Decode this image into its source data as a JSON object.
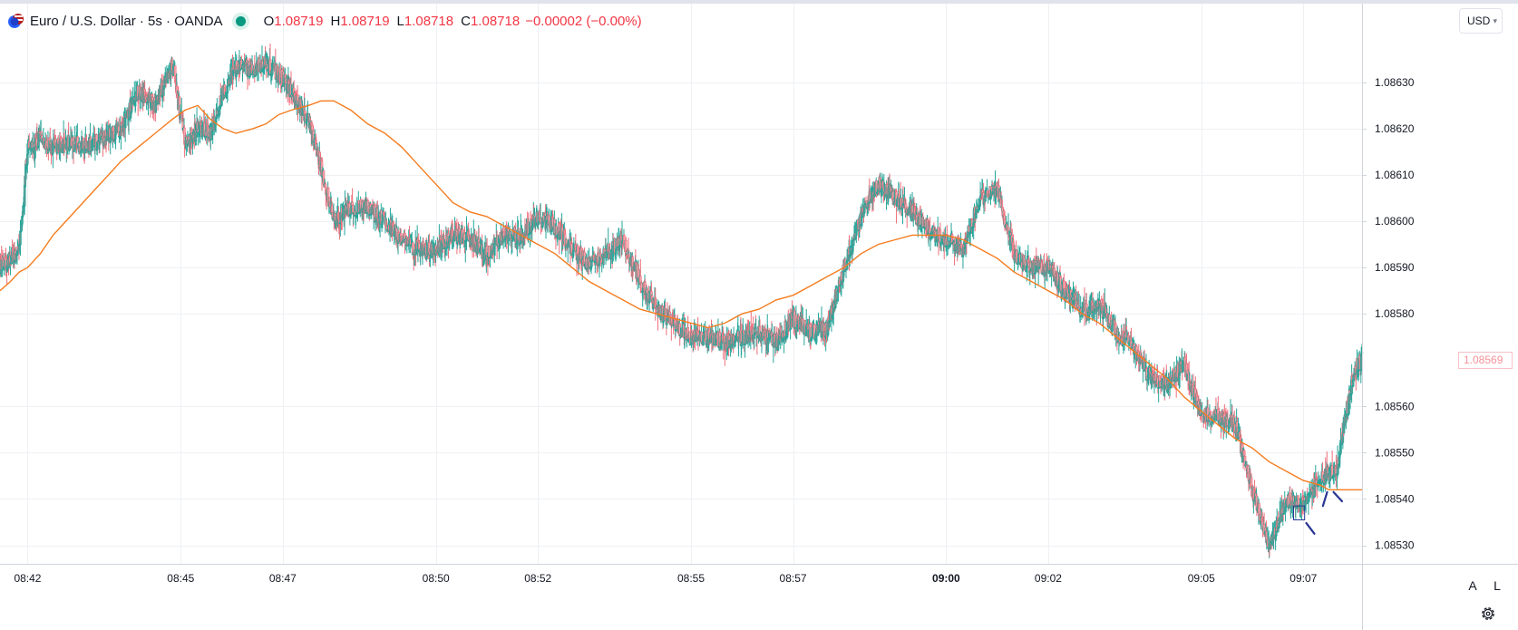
{
  "legend": {
    "symbol_icon": "currency-flag-icon",
    "title": "Euro / U.S. Dollar · 5s · OANDA",
    "status_icon": "market-open-dot-icon",
    "open_label": "O",
    "open": "1.08719",
    "high_label": "H",
    "high": "1.08719",
    "low_label": "L",
    "low": "1.08718",
    "close_label": "C",
    "close": "1.08718",
    "change": "−0.00002 (−0.00%)"
  },
  "toolbar": {
    "currency": "USD",
    "auto_scale": "A",
    "log_scale": "L",
    "settings_icon": "gear-icon"
  },
  "colors": {
    "up": "#26a69a",
    "up_body": "#5d9c97",
    "down": "#f4a7ae",
    "down_body": "#f4a7ae",
    "ma": "#f57c1f",
    "grid": "#eef0f3",
    "annotation": "#283593"
  },
  "chart_data": {
    "type": "candlestick",
    "x_ticks": [
      {
        "label": "08:42",
        "t": 504
      },
      {
        "label": "08:45",
        "t": 540
      },
      {
        "label": "08:47",
        "t": 564
      },
      {
        "label": "08:50",
        "t": 600
      },
      {
        "label": "08:52",
        "t": 624
      },
      {
        "label": "08:55",
        "t": 660
      },
      {
        "label": "08:57",
        "t": 684
      },
      {
        "label": "09:00",
        "t": 720,
        "bold": true
      },
      {
        "label": "09:02",
        "t": 744
      },
      {
        "label": "09:05",
        "t": 780
      },
      {
        "label": "09:07",
        "t": 804
      }
    ],
    "y_ticks": [
      "1.08630",
      "1.08620",
      "1.08610",
      "1.08600",
      "1.08590",
      "1.08580",
      "1.08560",
      "1.08550",
      "1.08540",
      "1.08530"
    ],
    "ylim": [
      1.08526,
      1.08647
    ],
    "xlim": [
      497.5,
      817.8
    ],
    "last_price": "1.08569",
    "ma_series": {
      "name": "",
      "points": [
        [
          497.5,
          1.08585
        ],
        [
          500,
          1.08587
        ],
        [
          502,
          1.08589
        ],
        [
          504,
          1.0859
        ],
        [
          507,
          1.08593
        ],
        [
          510,
          1.08597
        ],
        [
          514,
          1.08601
        ],
        [
          518,
          1.08605
        ],
        [
          522,
          1.08609
        ],
        [
          526,
          1.08613
        ],
        [
          530,
          1.08616
        ],
        [
          534,
          1.08619
        ],
        [
          538,
          1.08622
        ],
        [
          541,
          1.08624
        ],
        [
          544,
          1.08625
        ],
        [
          547,
          1.08622
        ],
        [
          550,
          1.0862
        ],
        [
          553,
          1.08619
        ],
        [
          557,
          1.0862
        ],
        [
          560,
          1.08621
        ],
        [
          563,
          1.08623
        ],
        [
          566,
          1.08624
        ],
        [
          570,
          1.08625
        ],
        [
          573,
          1.08626
        ],
        [
          576,
          1.08626
        ],
        [
          580,
          1.08624
        ],
        [
          584,
          1.08621
        ],
        [
          588,
          1.08619
        ],
        [
          592,
          1.08616
        ],
        [
          596,
          1.08612
        ],
        [
          600,
          1.08608
        ],
        [
          604,
          1.08604
        ],
        [
          608,
          1.08602
        ],
        [
          612,
          1.08601
        ],
        [
          616,
          1.08599
        ],
        [
          620,
          1.08597
        ],
        [
          624,
          1.08595
        ],
        [
          628,
          1.08593
        ],
        [
          632,
          1.0859
        ],
        [
          636,
          1.08587
        ],
        [
          640,
          1.08585
        ],
        [
          644,
          1.08583
        ],
        [
          648,
          1.08581
        ],
        [
          652,
          1.0858
        ],
        [
          656,
          1.08579
        ],
        [
          660,
          1.08578
        ],
        [
          664,
          1.08577
        ],
        [
          668,
          1.08578
        ],
        [
          672,
          1.0858
        ],
        [
          676,
          1.08581
        ],
        [
          680,
          1.08583
        ],
        [
          684,
          1.08584
        ],
        [
          688,
          1.08586
        ],
        [
          692,
          1.08588
        ],
        [
          696,
          1.0859
        ],
        [
          700,
          1.08593
        ],
        [
          704,
          1.08595
        ],
        [
          708,
          1.08596
        ],
        [
          712,
          1.08597
        ],
        [
          716,
          1.08597
        ],
        [
          720,
          1.08597
        ],
        [
          724,
          1.08596
        ],
        [
          728,
          1.08594
        ],
        [
          732,
          1.08592
        ],
        [
          736,
          1.08589
        ],
        [
          740,
          1.08587
        ],
        [
          744,
          1.08585
        ],
        [
          748,
          1.08583
        ],
        [
          752,
          1.0858
        ],
        [
          756,
          1.08578
        ],
        [
          760,
          1.08575
        ],
        [
          764,
          1.08572
        ],
        [
          768,
          1.08569
        ],
        [
          772,
          1.08566
        ],
        [
          776,
          1.08562
        ],
        [
          780,
          1.08559
        ],
        [
          784,
          1.08556
        ],
        [
          788,
          1.08553
        ],
        [
          792,
          1.08551
        ],
        [
          796,
          1.08548
        ],
        [
          800,
          1.08546
        ],
        [
          804,
          1.08544
        ],
        [
          808,
          1.08543
        ],
        [
          810,
          1.08542
        ],
        [
          812,
          1.08542
        ],
        [
          814,
          1.08542
        ],
        [
          817.8,
          1.08542
        ]
      ]
    },
    "anchors": [
      [
        497.5,
        1.0859
      ],
      [
        502,
        1.08593
      ],
      [
        504,
        1.08616
      ],
      [
        507,
        1.08618
      ],
      [
        510,
        1.08616
      ],
      [
        514,
        1.08617
      ],
      [
        518,
        1.08616
      ],
      [
        522,
        1.08618
      ],
      [
        526,
        1.0862
      ],
      [
        530,
        1.08628
      ],
      [
        534,
        1.08625
      ],
      [
        538,
        1.08634
      ],
      [
        541,
        1.08617
      ],
      [
        544,
        1.0862
      ],
      [
        547,
        1.08619
      ],
      [
        550,
        1.08628
      ],
      [
        553,
        1.08633
      ],
      [
        557,
        1.08633
      ],
      [
        560,
        1.08634
      ],
      [
        563,
        1.08632
      ],
      [
        566,
        1.08628
      ],
      [
        570,
        1.08622
      ],
      [
        573,
        1.08612
      ],
      [
        576,
        1.086
      ],
      [
        580,
        1.08603
      ],
      [
        584,
        1.08603
      ],
      [
        588,
        1.086
      ],
      [
        592,
        1.08596
      ],
      [
        596,
        1.08594
      ],
      [
        600,
        1.08594
      ],
      [
        604,
        1.08597
      ],
      [
        608,
        1.08596
      ],
      [
        612,
        1.08593
      ],
      [
        616,
        1.08597
      ],
      [
        620,
        1.08597
      ],
      [
        624,
        1.08601
      ],
      [
        628,
        1.08599
      ],
      [
        632,
        1.08594
      ],
      [
        636,
        1.08591
      ],
      [
        640,
        1.08593
      ],
      [
        644,
        1.08596
      ],
      [
        648,
        1.08587
      ],
      [
        652,
        1.08581
      ],
      [
        656,
        1.08578
      ],
      [
        660,
        1.08575
      ],
      [
        664,
        1.08575
      ],
      [
        668,
        1.08574
      ],
      [
        672,
        1.08575
      ],
      [
        676,
        1.08576
      ],
      [
        680,
        1.08574
      ],
      [
        684,
        1.08579
      ],
      [
        688,
        1.08576
      ],
      [
        692,
        1.08577
      ],
      [
        696,
        1.0859
      ],
      [
        700,
        1.08601
      ],
      [
        704,
        1.08608
      ],
      [
        708,
        1.08605
      ],
      [
        712,
        1.08602
      ],
      [
        716,
        1.08598
      ],
      [
        720,
        1.08596
      ],
      [
        724,
        1.08594
      ],
      [
        728,
        1.08605
      ],
      [
        732,
        1.08607
      ],
      [
        736,
        1.08593
      ],
      [
        740,
        1.0859
      ],
      [
        744,
        1.0859
      ],
      [
        748,
        1.08585
      ],
      [
        752,
        1.08581
      ],
      [
        756,
        1.08582
      ],
      [
        760,
        1.08576
      ],
      [
        764,
        1.08573
      ],
      [
        768,
        1.08566
      ],
      [
        772,
        1.08565
      ],
      [
        776,
        1.08569
      ],
      [
        780,
        1.08558
      ],
      [
        784,
        1.08558
      ],
      [
        788,
        1.08556
      ],
      [
        792,
        1.08542
      ],
      [
        796,
        1.0853
      ],
      [
        800,
        1.0854
      ],
      [
        804,
        1.08539
      ],
      [
        808,
        1.08544
      ],
      [
        812,
        1.08547
      ],
      [
        814,
        1.08558
      ],
      [
        816,
        1.08568
      ],
      [
        817.8,
        1.0857
      ]
    ],
    "annotations": [
      {
        "type": "rectangle",
        "t": [
          801.7,
          804.3
        ],
        "y": [
          1.085355,
          1.085385
        ]
      },
      {
        "type": "line",
        "t": [
          804.7,
          806.6
        ],
        "y": [
          1.085348,
          1.085325
        ]
      },
      {
        "type": "line",
        "t": [
          808.6,
          809.6
        ],
        "y": [
          1.085385,
          1.085415
        ]
      },
      {
        "type": "line",
        "t": [
          811.1,
          813.1
        ],
        "y": [
          1.085415,
          1.085395
        ]
      }
    ]
  }
}
